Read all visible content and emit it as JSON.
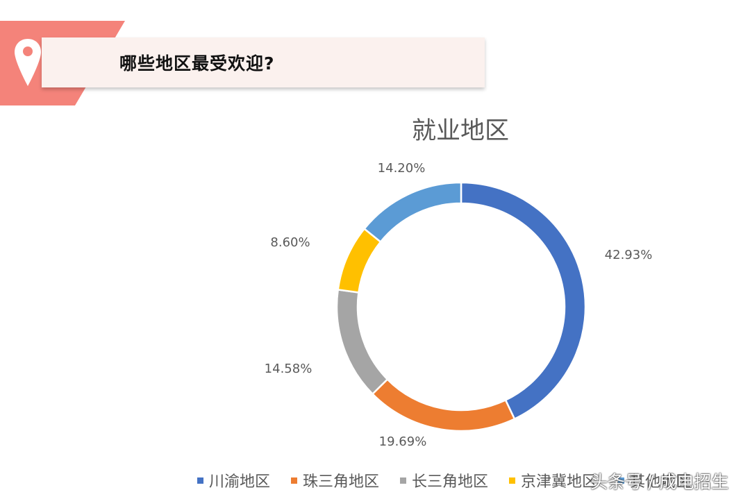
{
  "header": {
    "title": "哪些地区最受欢迎?",
    "icon": "map-pin-icon",
    "accent_color": "#f4837a",
    "banner_color": "#fbf1ee"
  },
  "chart_data": {
    "type": "pie",
    "style": "donut",
    "title": "就业地区",
    "categories": [
      "川渝地区",
      "珠三角地区",
      "长三角地区",
      "京津冀地区",
      "其他地区"
    ],
    "values": [
      42.93,
      19.69,
      14.58,
      8.6,
      14.2
    ],
    "labels": [
      "42.93%",
      "19.69%",
      "14.58%",
      "8.60%",
      "14.20%"
    ],
    "colors": [
      "#4472c4",
      "#ed7d31",
      "#a5a5a5",
      "#ffc000",
      "#5b9bd5"
    ],
    "legend_position": "bottom",
    "legend": [
      "川渝地区",
      "珠三角地区",
      "长三角地区",
      "京津冀地区",
      "其他地区"
    ]
  },
  "watermark": "头条号 / 成电招生"
}
